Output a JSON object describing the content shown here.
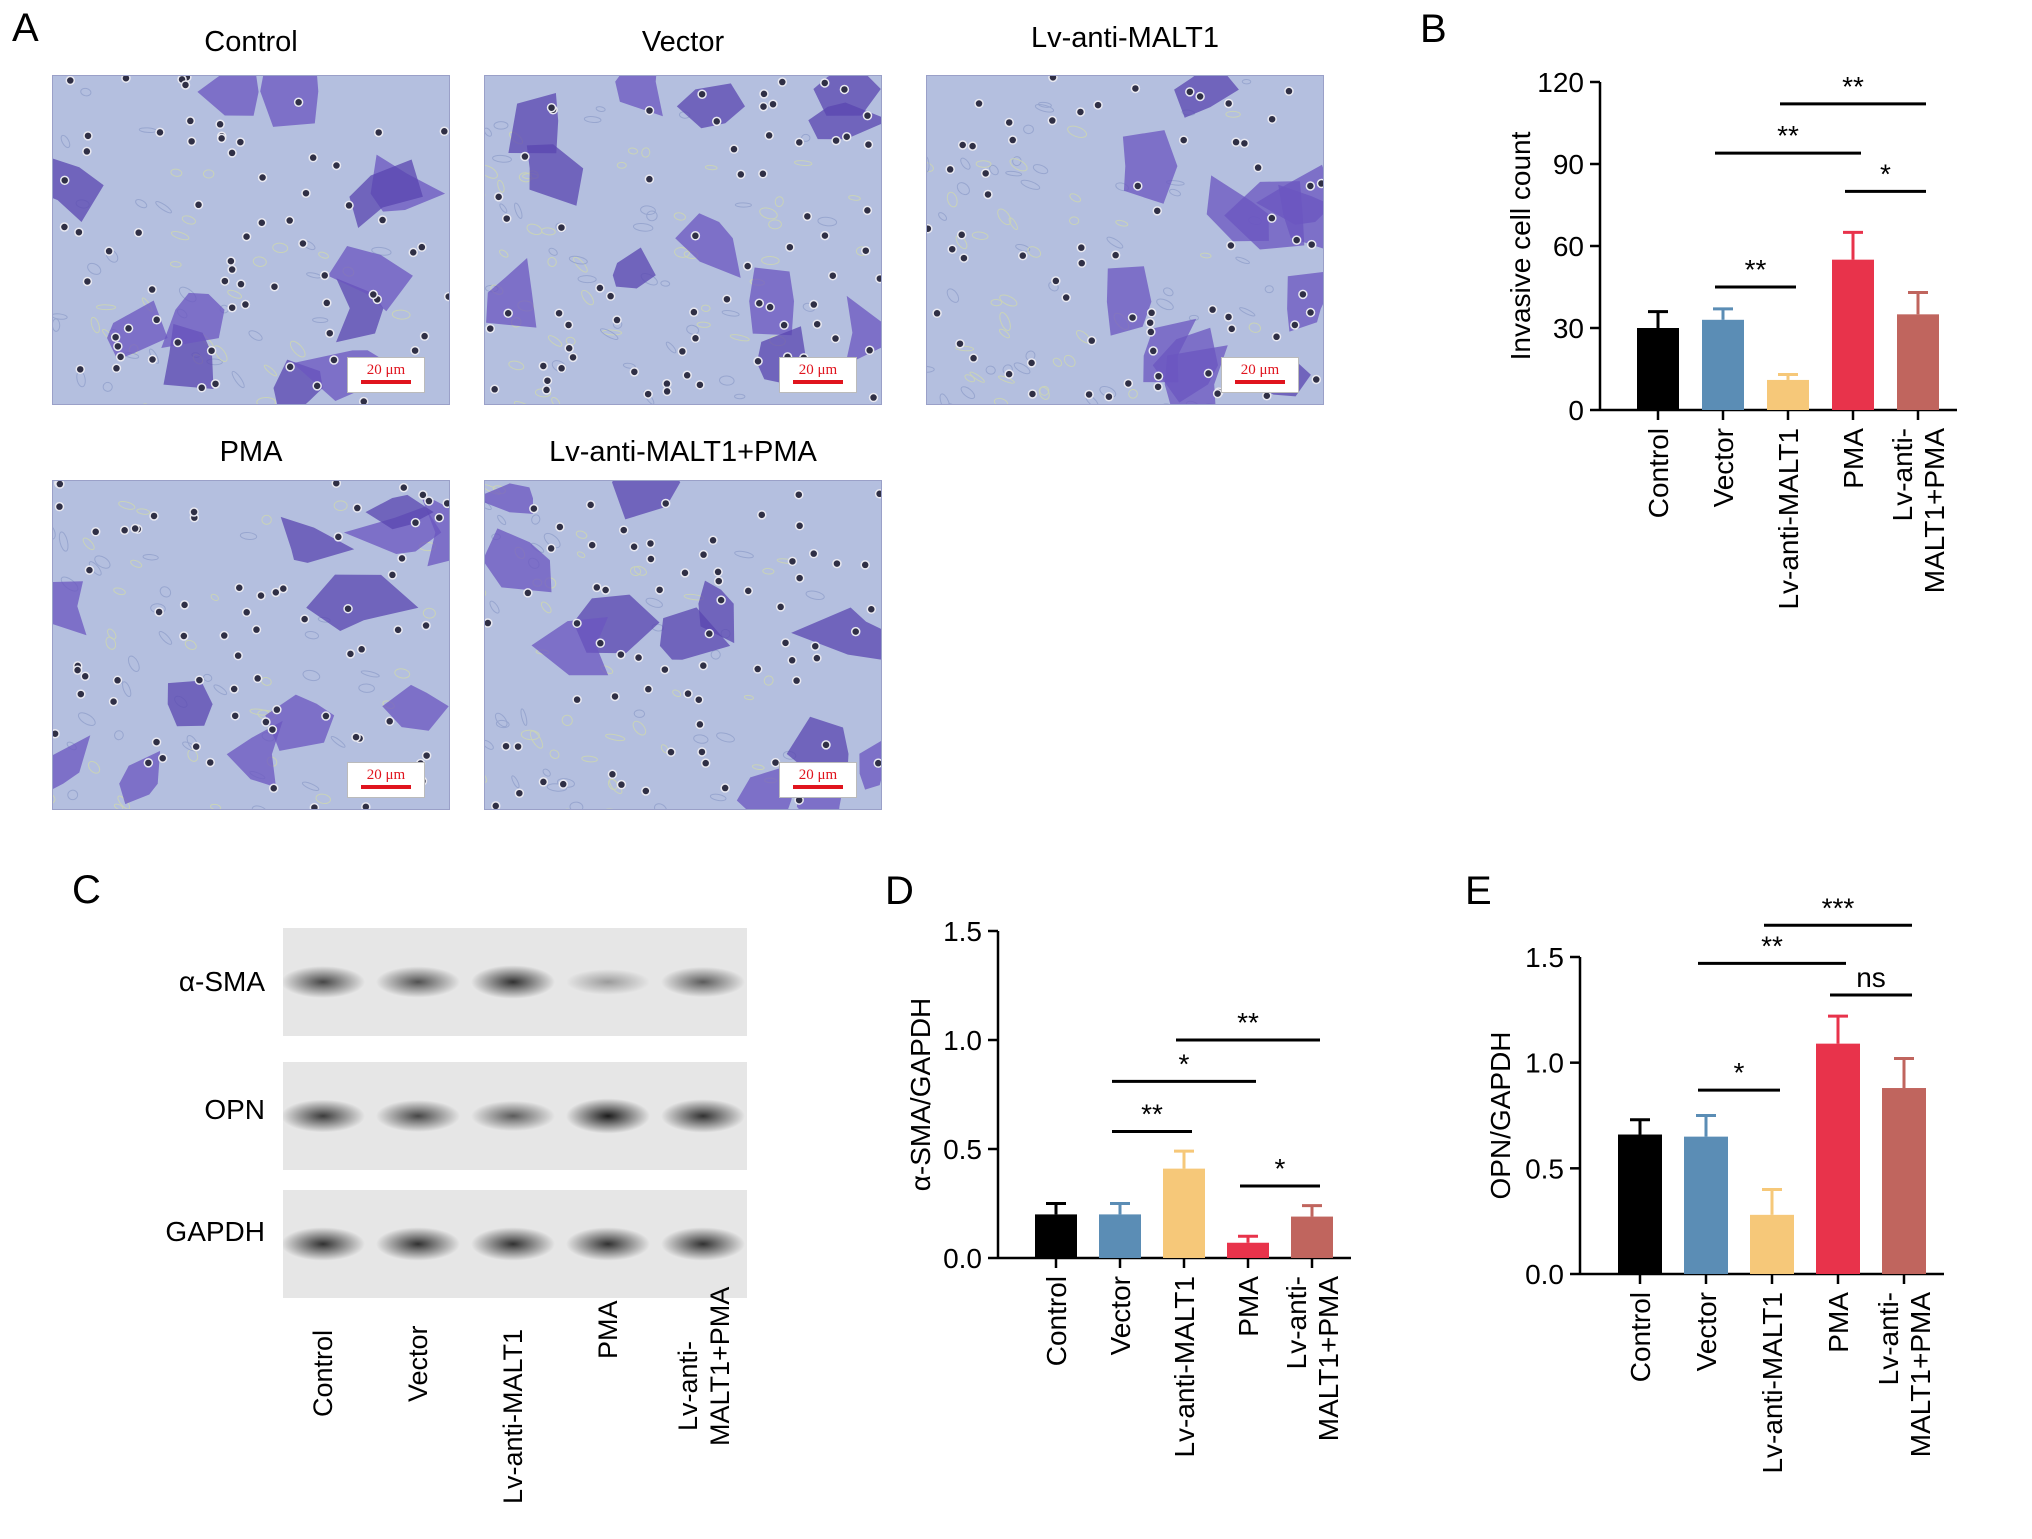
{
  "panelA": {
    "letter": "A",
    "titles": [
      "Control",
      "Vector",
      "Lv-anti-MALT1",
      "PMA",
      "Lv-anti-MALT1+PMA"
    ],
    "scale_bar": "20 μm"
  },
  "panelC": {
    "letter": "C",
    "bands": [
      "α-SMA",
      "OPN",
      "GAPDH"
    ],
    "lanes": [
      "Control",
      "Vector",
      "Lv-anti-MALT1",
      "PMA",
      "Lv-anti-\nMALT1+PMA"
    ],
    "band_intensity": {
      "α-SMA": [
        0.75,
        0.7,
        0.85,
        0.35,
        0.65
      ],
      "OPN": [
        0.8,
        0.75,
        0.65,
        0.95,
        0.85
      ],
      "GAPDH": [
        0.85,
        0.85,
        0.85,
        0.85,
        0.85
      ]
    }
  },
  "chart_data": [
    {
      "panel": "B",
      "type": "bar",
      "ylabel": "Invasive cell count",
      "ylim": [
        0,
        120
      ],
      "yticks": [
        0,
        30,
        60,
        90,
        120
      ],
      "categories": [
        "Control",
        "Vector",
        "Lv-anti-MALT1",
        "PMA",
        "Lv-anti-\nMALT1+PMA"
      ],
      "values": [
        30,
        33,
        11,
        55,
        35
      ],
      "errors": [
        6,
        4,
        2,
        10,
        8
      ],
      "colors": [
        "#000000",
        "#5b8db5",
        "#f6c879",
        "#e8334b",
        "#c0655e"
      ],
      "significance": [
        {
          "from": 2,
          "to": 3,
          "label": "**"
        },
        {
          "from": 4,
          "to": 5,
          "label": "*"
        },
        {
          "from": 2,
          "to": 4,
          "label": "**"
        },
        {
          "from": 3,
          "to": 5,
          "label": "**"
        }
      ]
    },
    {
      "panel": "D",
      "type": "bar",
      "ylabel": "α-SMA/GAPDH",
      "ylim": [
        0,
        1.5
      ],
      "yticks": [
        "0.0",
        "0.5",
        "1.0",
        "1.5"
      ],
      "categories": [
        "Control",
        "Vector",
        "Lv-anti-MALT1",
        "PMA",
        "Lv-anti-\nMALT1+PMA"
      ],
      "values": [
        0.2,
        0.2,
        0.41,
        0.07,
        0.19
      ],
      "errors": [
        0.05,
        0.05,
        0.08,
        0.03,
        0.05
      ],
      "colors": [
        "#000000",
        "#5b8db5",
        "#f6c879",
        "#e8334b",
        "#c0655e"
      ],
      "significance": [
        {
          "from": 2,
          "to": 3,
          "label": "**"
        },
        {
          "from": 4,
          "to": 5,
          "label": "*"
        },
        {
          "from": 2,
          "to": 4,
          "label": "*"
        },
        {
          "from": 3,
          "to": 5,
          "label": "**"
        }
      ]
    },
    {
      "panel": "E",
      "type": "bar",
      "ylabel": "OPN/GAPDH",
      "ylim": [
        0,
        1.5
      ],
      "yticks": [
        "0.0",
        "0.5",
        "1.0",
        "1.5"
      ],
      "categories": [
        "Control",
        "Vector",
        "Lv-anti-MALT1",
        "PMA",
        "Lv-anti-\nMALT1+PMA"
      ],
      "values": [
        0.66,
        0.65,
        0.28,
        1.09,
        0.88
      ],
      "errors": [
        0.07,
        0.1,
        0.12,
        0.13,
        0.14
      ],
      "colors": [
        "#000000",
        "#5b8db5",
        "#f6c879",
        "#e8334b",
        "#c0655e"
      ],
      "significance": [
        {
          "from": 2,
          "to": 3,
          "label": "*"
        },
        {
          "from": 4,
          "to": 5,
          "label": "ns"
        },
        {
          "from": 2,
          "to": 4,
          "label": "**"
        },
        {
          "from": 3,
          "to": 5,
          "label": "***"
        }
      ]
    }
  ]
}
